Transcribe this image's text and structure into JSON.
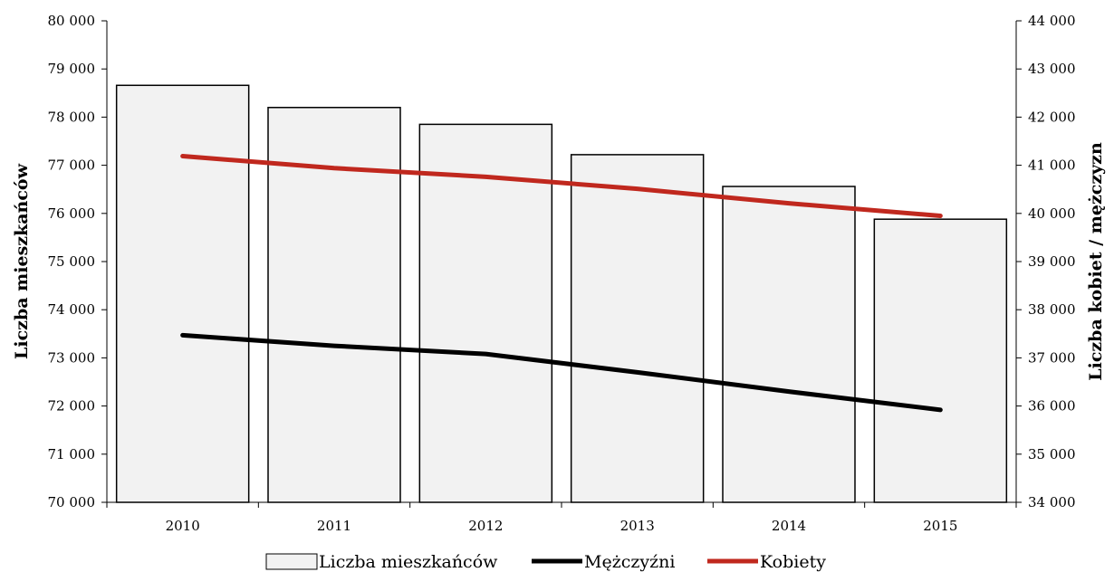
{
  "chart_data": {
    "type": "bar+line",
    "categories": [
      "2010",
      "2011",
      "2012",
      "2013",
      "2014",
      "2015"
    ],
    "bar_series": {
      "name": "Liczba mieszkańców",
      "axis": "left",
      "values": [
        78660,
        78200,
        77850,
        77220,
        76560,
        75880
      ],
      "color": "#f2f2f2",
      "stroke": "#000000"
    },
    "line_series": [
      {
        "name": "Mężczyźni",
        "axis": "right",
        "values": [
          37470,
          37250,
          37080,
          36700,
          36300,
          35920
        ],
        "color": "#000000"
      },
      {
        "name": "Kobiety",
        "axis": "right",
        "values": [
          41190,
          40940,
          40760,
          40510,
          40210,
          39950
        ],
        "color": "#c0281e"
      }
    ],
    "y_left": {
      "label": "Liczba mieszkańców",
      "min": 70000,
      "max": 80000,
      "step": 1000,
      "ticks": [
        "70 000",
        "71 000",
        "72 000",
        "73 000",
        "74 000",
        "75 000",
        "76 000",
        "77 000",
        "78 000",
        "79 000",
        "80 000"
      ]
    },
    "y_right": {
      "label": "Liczba kobiet / mężczyzn",
      "min": 34000,
      "max": 44000,
      "step": 1000,
      "ticks": [
        "34 000",
        "35 000",
        "36 000",
        "37 000",
        "38 000",
        "39 000",
        "40 000",
        "41 000",
        "42 000",
        "43 000",
        "44 000"
      ]
    },
    "legend": {
      "placement": "bottom",
      "items": [
        "Liczba mieszkańców",
        "Mężczyźni",
        "Kobiety"
      ]
    },
    "grid": false
  }
}
